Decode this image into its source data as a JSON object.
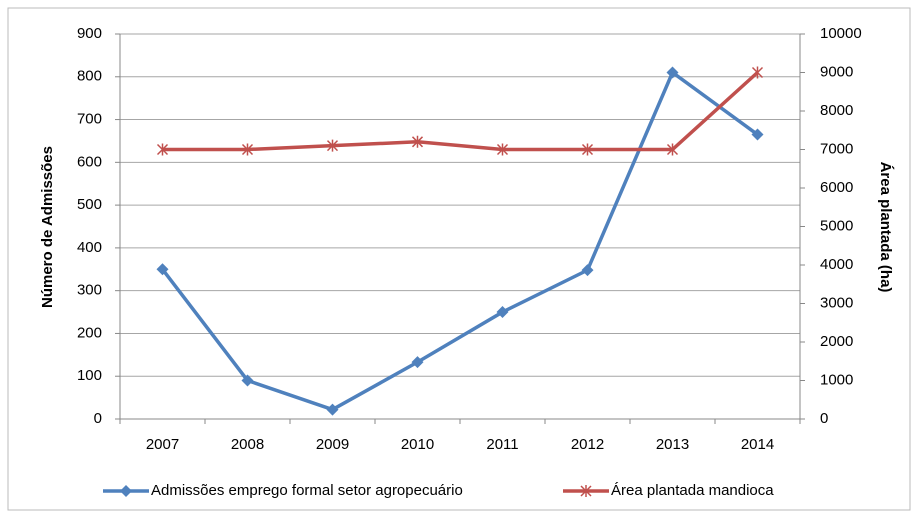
{
  "chart_data": {
    "type": "line",
    "categories": [
      "2007",
      "2008",
      "2009",
      "2010",
      "2011",
      "2012",
      "2013",
      "2014"
    ],
    "series": [
      {
        "name": "Admissões emprego formal setor agropecuário",
        "color": "#4f81bd",
        "axis": "y",
        "values": [
          350,
          90,
          22,
          133,
          250,
          348,
          810,
          665
        ]
      },
      {
        "name": "Área plantada mandioca",
        "color": "#c0504d",
        "axis": "y2",
        "values": [
          7000,
          7000,
          7100,
          7200,
          7000,
          7000,
          7000,
          9000
        ]
      }
    ],
    "ylabel": "Número de Admissões",
    "y2label": "Área plantada (ha)",
    "ylim": [
      0,
      900
    ],
    "yticks": [
      0,
      100,
      200,
      300,
      400,
      500,
      600,
      700,
      800,
      900
    ],
    "y2lim": [
      0,
      10000
    ],
    "y2ticks": [
      0,
      1000,
      2000,
      3000,
      4000,
      5000,
      6000,
      7000,
      8000,
      9000,
      10000
    ],
    "grid": true,
    "legend": "bottom"
  }
}
